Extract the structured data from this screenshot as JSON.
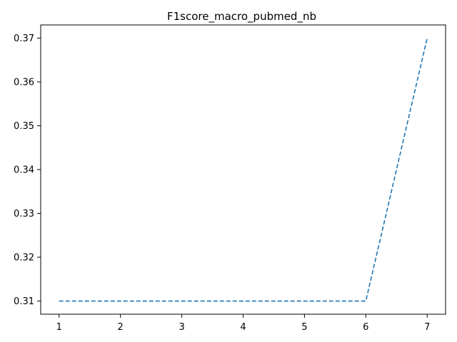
{
  "chart_data": {
    "type": "line",
    "title": "F1score_macro_pubmed_nb",
    "xlabel": "",
    "ylabel": "",
    "x": [
      1,
      2,
      3,
      4,
      5,
      6,
      7
    ],
    "series": [
      {
        "values": [
          0.31,
          0.31,
          0.31,
          0.31,
          0.31,
          0.31,
          0.37
        ],
        "color": "#1f77b4",
        "line_style": "dashed"
      }
    ],
    "x_ticks": [
      "1",
      "2",
      "3",
      "4",
      "5",
      "6",
      "7"
    ],
    "y_ticks": [
      "0.31",
      "0.32",
      "0.33",
      "0.34",
      "0.35",
      "0.36",
      "0.37"
    ],
    "xlim": [
      0.7,
      7.3
    ],
    "ylim": [
      0.307,
      0.373
    ],
    "grid": false,
    "legend": "none"
  }
}
